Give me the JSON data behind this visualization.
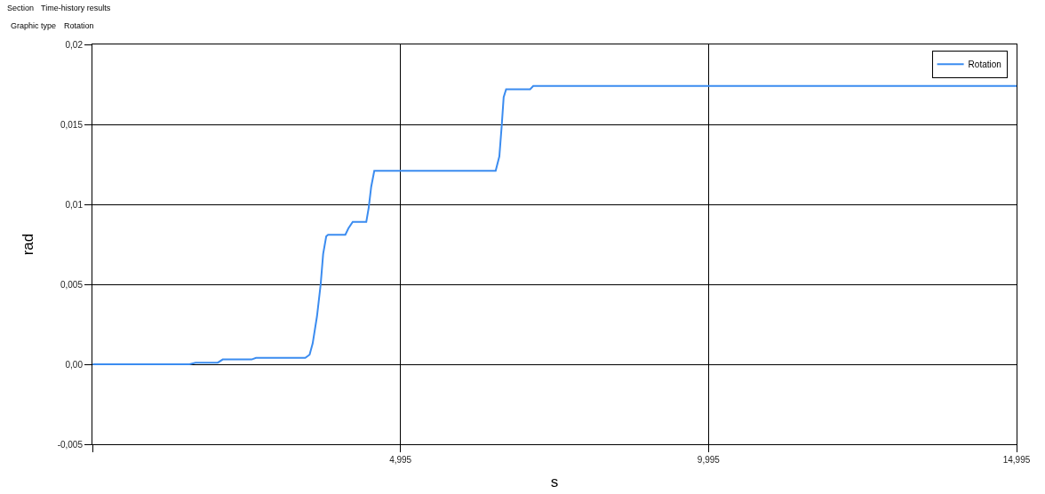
{
  "chart_data": {
    "type": "line",
    "annotations": [
      "Section",
      "Time-history results",
      "Graphic type",
      "Rotation"
    ],
    "xlabel": "s",
    "ylabel": "rad",
    "xlim": [
      -0.005,
      14.995
    ],
    "xticks": [
      {
        "value": -0.005,
        "label": null
      },
      {
        "value": 4.995,
        "label": "4,995"
      },
      {
        "value": 9.995,
        "label": "9,995"
      },
      {
        "value": 14.995,
        "label": "14,995"
      }
    ],
    "ylim": [
      -0.005,
      0.02
    ],
    "yticks": [
      {
        "value": -0.005,
        "label": "-0,005"
      },
      {
        "value": 0,
        "label": "0,00"
      },
      {
        "value": 0.005,
        "label": "0,005"
      },
      {
        "value": 0.01,
        "label": "0,01"
      },
      {
        "value": 0.015,
        "label": "0,015"
      },
      {
        "value": 0.02,
        "label": "0,02"
      }
    ],
    "grid": true,
    "legend": "top right",
    "series": [
      {
        "name": "Rotation",
        "color": "#3b8cf0",
        "x": [
          0,
          1.57,
          1.67,
          2.03,
          2.11,
          2.58,
          2.65,
          3.45,
          3.52,
          3.57,
          3.64,
          3.7,
          3.74,
          3.79,
          3.82,
          4.1,
          4.15,
          4.22,
          4.44,
          4.48,
          4.52,
          4.57,
          6.54,
          6.6,
          6.64,
          6.67,
          6.71,
          7.1,
          7.15,
          14.995
        ],
        "values": [
          0,
          0,
          0.0001,
          0.0001,
          0.0003,
          0.0003,
          0.0004,
          0.0004,
          0.0006,
          0.0013,
          0.003,
          0.005,
          0.0069,
          0.008,
          0.0081,
          0.0081,
          0.0085,
          0.0089,
          0.0089,
          0.0098,
          0.0111,
          0.0121,
          0.0121,
          0.013,
          0.015,
          0.0167,
          0.0172,
          0.0172,
          0.0174,
          0.0174
        ]
      }
    ]
  }
}
